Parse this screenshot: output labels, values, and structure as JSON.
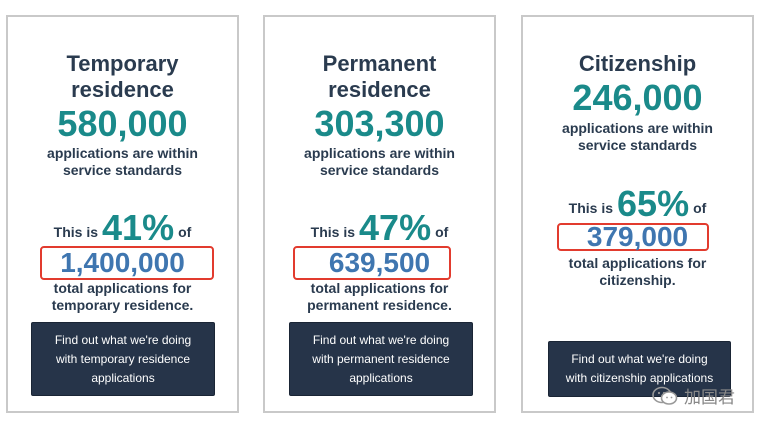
{
  "cards": [
    {
      "title_line1": "Temporary",
      "title_line2": "residence",
      "count": "580,000",
      "sub_line1": "applications are within",
      "sub_line2": "service standards",
      "this_is": "This is",
      "percent": "41%",
      "of": "of",
      "total": "1,400,000",
      "total_line1": "total applications for",
      "total_line2": "temporary residence.",
      "button_line1": "Find out what we're doing",
      "button_line2": "with temporary residence",
      "button_line3": "applications"
    },
    {
      "title_line1": "Permanent",
      "title_line2": "residence",
      "count": "303,300",
      "sub_line1": "applications are within",
      "sub_line2": "service standards",
      "this_is": "This is",
      "percent": "47%",
      "of": "of",
      "total": "639,500",
      "total_line1": "total applications for",
      "total_line2": "permanent residence.",
      "button_line1": "Find out what we're doing",
      "button_line2": "with permanent residence",
      "button_line3": "applications"
    },
    {
      "title_line1": "Citizenship",
      "count": "246,000",
      "sub_line1": "applications are within",
      "sub_line2": "service standards",
      "this_is": "This is",
      "percent": "65%",
      "of": "of",
      "total": "379,000",
      "total_line1": "total applications for",
      "total_line2": "citizenship.",
      "button_line1": "Find out what we're doing",
      "button_line2": "with citizenship applications"
    }
  ],
  "watermark": {
    "text": "加国君",
    "icon": "wechat-icon"
  },
  "colors": {
    "title": "#2a3b4f",
    "accent": "#1a8a8a",
    "total": "#3f76b0",
    "highlight": "#e23b2e",
    "button": "#263449"
  }
}
